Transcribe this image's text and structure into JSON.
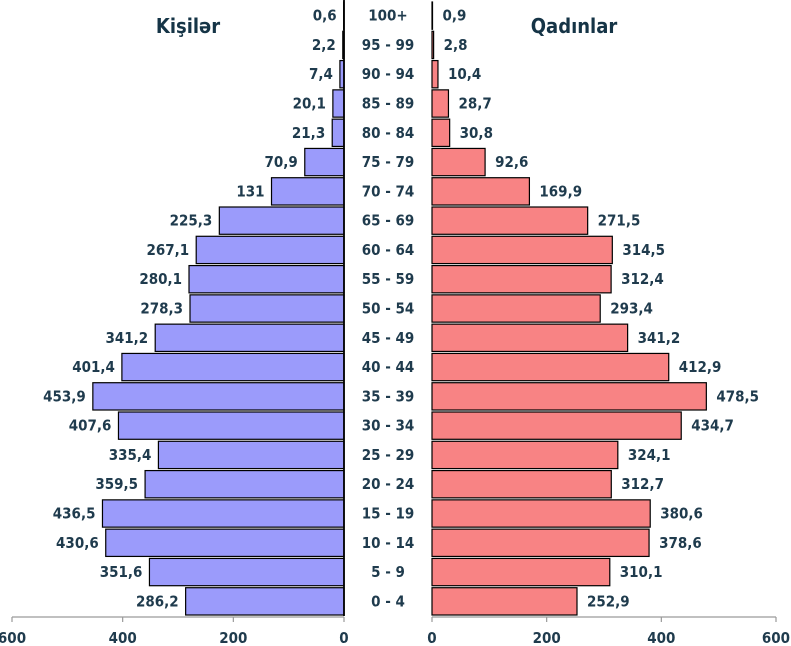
{
  "chart_data": {
    "type": "bar",
    "orientation": "horizontal",
    "layout": "population-pyramid",
    "categories": [
      "0 - 4",
      "5 - 9",
      "10 - 14",
      "15 - 19",
      "20 - 24",
      "25 - 29",
      "30 - 34",
      "35 - 39",
      "40 - 44",
      "45 - 49",
      "50 - 54",
      "55 - 59",
      "60 - 64",
      "65 - 69",
      "70 - 74",
      "75 - 79",
      "80 - 84",
      "85 - 89",
      "90 - 94",
      "95 - 99",
      "100+"
    ],
    "series": [
      {
        "name": "Kişilər",
        "color": "#9b9bfb",
        "values": [
          286.2,
          351.6,
          430.6,
          436.5,
          359.5,
          335.4,
          407.6,
          453.9,
          401.4,
          341.2,
          278.3,
          280.1,
          267.1,
          225.3,
          131,
          70.9,
          21.3,
          20.1,
          7.4,
          2.2,
          0.6
        ],
        "labels": [
          "286,2",
          "351,6",
          "430,6",
          "436,5",
          "359,5",
          "335,4",
          "407,6",
          "453,9",
          "401,4",
          "341,2",
          "278,3",
          "280,1",
          "267,1",
          "225,3",
          "131",
          "70,9",
          "21,3",
          "20,1",
          "7,4",
          "2,2",
          "0,6"
        ]
      },
      {
        "name": "Qadınlar",
        "color": "#f88384",
        "values": [
          252.9,
          310.1,
          378.6,
          380.6,
          312.7,
          324.1,
          434.7,
          478.5,
          412.9,
          341.2,
          293.4,
          312.4,
          314.5,
          271.5,
          169.9,
          92.6,
          30.8,
          28.7,
          10.4,
          2.8,
          0.9
        ],
        "labels": [
          "252,9",
          "310,1",
          "378,6",
          "380,6",
          "312,7",
          "324,1",
          "434,7",
          "478,5",
          "412,9",
          "341,2",
          "293,4",
          "312,4",
          "314,5",
          "271,5",
          "169,9",
          "92,6",
          "30,8",
          "28,7",
          "10,4",
          "2,8",
          "0,9"
        ]
      }
    ],
    "xlim": [
      0,
      600
    ],
    "left_ticks": [
      "600",
      "400",
      "200",
      "0"
    ],
    "right_ticks": [
      "0",
      "200",
      "400",
      "600"
    ],
    "tick_values": [
      600,
      400,
      200,
      0
    ],
    "right_tick_values": [
      0,
      200,
      400,
      600
    ],
    "grid": false,
    "legend": "none",
    "left_title": "Kişilər",
    "right_title": "Qadınlar"
  }
}
